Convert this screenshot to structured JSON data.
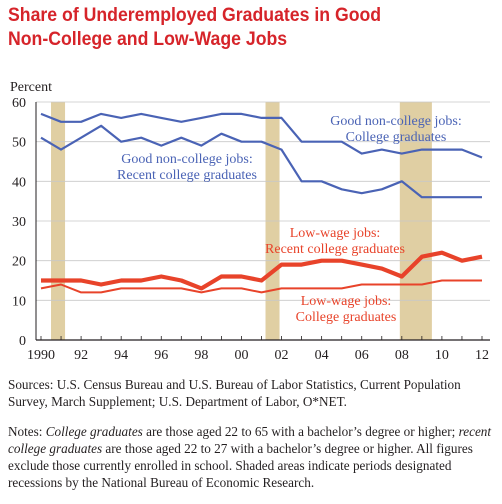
{
  "title_line1": "Share of Underemployed Graduates in Good",
  "title_line2": "Non-College and Low-Wage Jobs",
  "sources": "Sources: U.S. Census Bureau and U.S. Bureau of Labor Statistics, Current Population Survey, March Supplement; U.S. Department of Labor, O*NET.",
  "notes": {
    "prefix": "Notes: ",
    "term1": "College graduates",
    "text1": " are those aged 22 to 65 with a bachelor’s degree or higher; ",
    "term2": "recent college graduates",
    "text2": " are those aged 22 to 27 with a bachelor’s degree or higher. All figures exclude those currently enrolled in school. Shaded areas indicate periods designated recessions by the National Bureau of Economic Research."
  },
  "colors": {
    "blue": "#4a63b5",
    "red": "#e8432a",
    "recession": "#e0cfa3",
    "title": "#d6242a",
    "grid": "#c8c8c8"
  },
  "chart_data": {
    "type": "line",
    "ylabel": "Percent",
    "ylim": [
      0,
      60
    ],
    "yticks": [
      0,
      10,
      20,
      30,
      40,
      50,
      60
    ],
    "xlim": [
      1990,
      2012
    ],
    "xtick_labels": [
      "1990",
      "92",
      "94",
      "96",
      "98",
      "00",
      "02",
      "04",
      "06",
      "08",
      "10",
      "12"
    ],
    "xtick_values": [
      1990,
      1992,
      1994,
      1996,
      1998,
      2000,
      2002,
      2004,
      2006,
      2008,
      2010,
      2012
    ],
    "grid": true,
    "recessions": [
      [
        1990.5,
        1991.2
      ],
      [
        2001.2,
        2001.9
      ],
      [
        2007.9,
        2009.5
      ]
    ],
    "x": [
      1990,
      1991,
      1992,
      1993,
      1994,
      1995,
      1996,
      1997,
      1998,
      1999,
      2000,
      2001,
      2002,
      2003,
      2004,
      2005,
      2006,
      2007,
      2008,
      2009,
      2010,
      2011,
      2012
    ],
    "series": [
      {
        "name": "Good non-college jobs: College graduates",
        "color": "#4a63b5",
        "width": 2.2,
        "values": [
          57,
          55,
          55,
          57,
          56,
          57,
          56,
          55,
          56,
          57,
          57,
          56,
          56,
          50,
          50,
          50,
          47,
          48,
          47,
          48,
          48,
          48,
          46
        ]
      },
      {
        "name": "Good non-college jobs: Recent college graduates",
        "color": "#4a63b5",
        "width": 2.2,
        "values": [
          51,
          48,
          51,
          54,
          50,
          51,
          49,
          51,
          49,
          52,
          50,
          50,
          48,
          40,
          40,
          38,
          37,
          38,
          40,
          36,
          36,
          36,
          36
        ]
      },
      {
        "name": "Low-wage jobs: Recent college graduates",
        "color": "#e8432a",
        "width": 4.2,
        "values": [
          15,
          15,
          15,
          14,
          15,
          15,
          16,
          15,
          13,
          16,
          16,
          15,
          19,
          19,
          20,
          20,
          19,
          18,
          16,
          21,
          22,
          20,
          21
        ]
      },
      {
        "name": "Low-wage jobs: College graduates",
        "color": "#e8432a",
        "width": 2.0,
        "values": [
          13,
          14,
          12,
          12,
          13,
          13,
          13,
          13,
          12,
          13,
          13,
          12,
          13,
          13,
          13,
          13,
          14,
          14,
          14,
          14,
          15,
          15,
          15
        ]
      }
    ],
    "annotations": [
      {
        "line1": "Good non-college jobs:",
        "line2": "College graduates",
        "color": "#4a63b5"
      },
      {
        "line1": "Good non-college jobs:",
        "line2": "Recent college graduates",
        "color": "#4a63b5"
      },
      {
        "line1": "Low-wage jobs:",
        "line2": "Recent college graduates",
        "color": "#e8432a"
      },
      {
        "line1": "Low-wage jobs:",
        "line2": "College graduates",
        "color": "#e8432a"
      }
    ]
  }
}
